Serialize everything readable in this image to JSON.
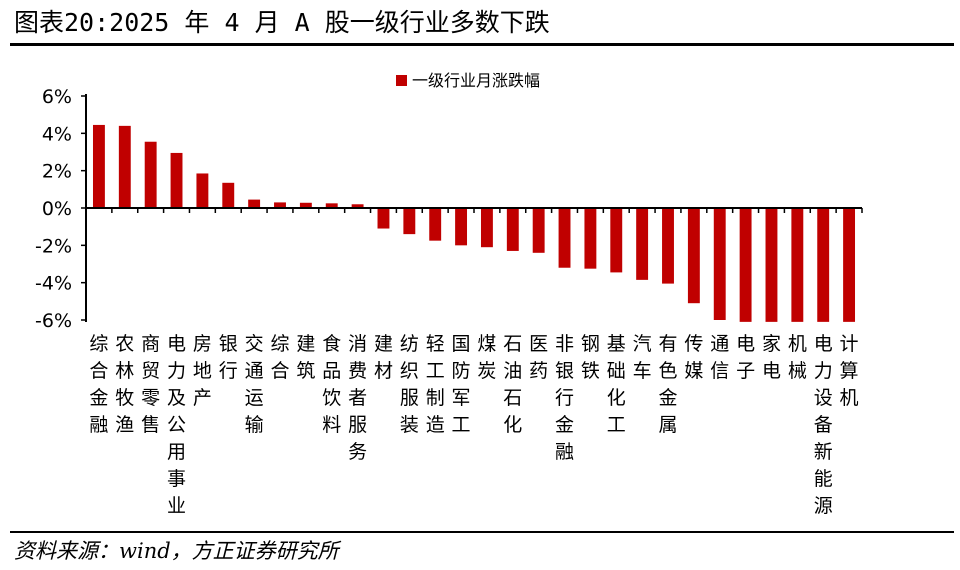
{
  "header": {
    "title": "图表20:2025 年 4 月 A 股一级行业多数下跌"
  },
  "footer": {
    "source": "资料来源：wind，方正证券研究所"
  },
  "colors": {
    "bar": "#c00000",
    "axis": "#000000"
  },
  "chart_data": {
    "type": "bar",
    "categories": [
      "综合金融",
      "农林牧渔",
      "商贸零售",
      "电力及公用事业",
      "房地产",
      "银行",
      "交通运输",
      "综合",
      "建筑",
      "食品饮料",
      "消费者服务",
      "建材",
      "纺织服装",
      "轻工制造",
      "国防军工",
      "煤炭",
      "石油石化",
      "医药",
      "非银行金融",
      "钢铁",
      "基础化工",
      "汽车",
      "有色金属",
      "传媒",
      "通信",
      "电子",
      "家电",
      "机械",
      "电力设备新能源",
      "计算机"
    ],
    "series": [
      {
        "name": "一级行业月涨跌幅",
        "values": [
          4.45,
          4.4,
          3.55,
          2.95,
          1.85,
          1.35,
          0.45,
          0.3,
          0.28,
          0.25,
          0.2,
          -1.1,
          -1.4,
          -1.75,
          -2.0,
          -2.1,
          -2.3,
          -2.4,
          -3.2,
          -3.25,
          -3.45,
          -3.85,
          -4.05,
          -5.1,
          -6.0,
          -6.1,
          -6.1,
          -6.1,
          -6.1,
          -6.1
        ]
      }
    ],
    "yticks": [
      "6%",
      "4%",
      "2%",
      "0%",
      "-2%",
      "-4%",
      "-6%"
    ],
    "ylim": [
      -6,
      6
    ],
    "legend_position": "top-center"
  }
}
